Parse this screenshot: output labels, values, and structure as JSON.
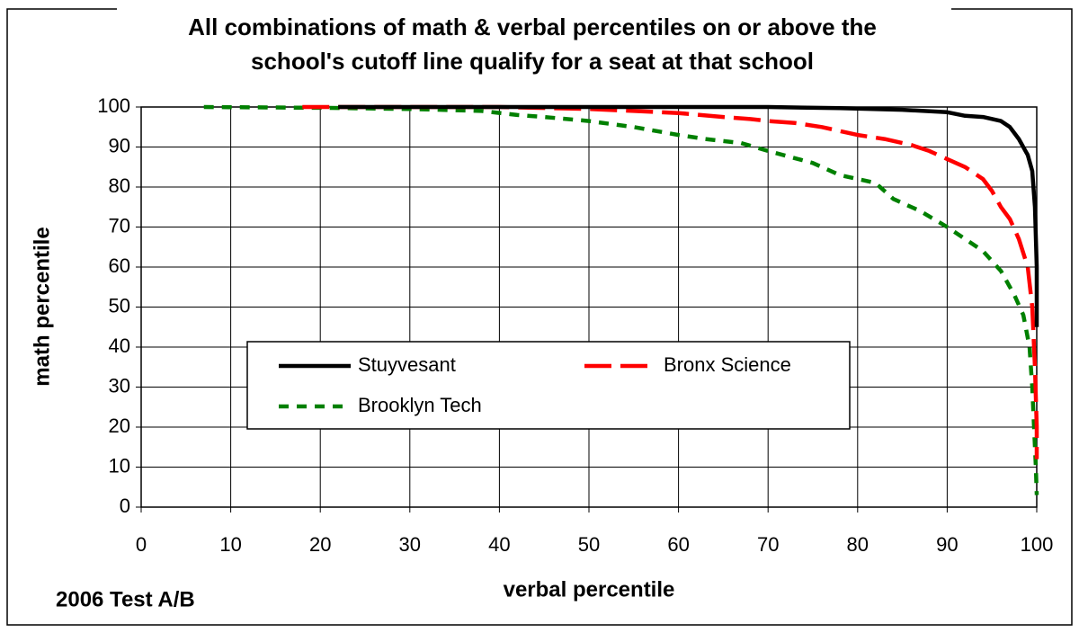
{
  "chart_data": {
    "type": "line",
    "title": [
      "All combinations of math & verbal percentiles on or above the",
      "school's cutoff line qualify for a seat at that school"
    ],
    "xlabel": "verbal percentile",
    "ylabel": "math percentile",
    "annotation": "2006 Test A/B",
    "xlim": [
      0,
      100
    ],
    "ylim": [
      0,
      100
    ],
    "xticks": [
      0,
      10,
      20,
      30,
      40,
      50,
      60,
      70,
      80,
      90,
      100
    ],
    "yticks": [
      0,
      10,
      20,
      30,
      40,
      50,
      60,
      70,
      80,
      90,
      100
    ],
    "grid": true,
    "legend": "center",
    "series": [
      {
        "name": "Stuyvesant",
        "color": "#000000",
        "line_style": "solid",
        "x": [
          22,
          70,
          78,
          85,
          90,
          92,
          94,
          96,
          97,
          98,
          99,
          99.5,
          99.8,
          100,
          100
        ],
        "values": [
          100,
          100,
          99.7,
          99.3,
          98.7,
          97.8,
          97.5,
          96.5,
          95,
          92,
          88,
          84,
          75,
          60,
          45
        ]
      },
      {
        "name": "Bronx Science",
        "color": "#ff0000",
        "line_style": "dashed",
        "x": [
          18,
          40,
          50,
          55,
          60,
          65,
          68,
          70,
          73,
          76,
          80,
          83,
          86,
          88,
          90,
          92,
          94,
          95,
          96,
          97,
          98,
          99,
          99.5,
          99.8,
          100,
          100
        ],
        "values": [
          100,
          100,
          99.5,
          99,
          98.5,
          97.5,
          97,
          96.5,
          96,
          95,
          93,
          92,
          90.5,
          89,
          87,
          85,
          82,
          79,
          75,
          72,
          67,
          60,
          50,
          35,
          20,
          12
        ]
      },
      {
        "name": "Brooklyn Tech",
        "color": "#008000",
        "line_style": "dotted",
        "x": [
          7,
          20,
          30,
          38,
          42,
          45,
          50,
          55,
          60,
          63,
          67,
          70,
          75,
          78,
          82,
          84,
          87,
          90,
          92,
          94,
          96,
          97.5,
          98.5,
          99.2,
          99.5,
          99.7,
          99.9,
          100
        ],
        "values": [
          100,
          99.8,
          99.5,
          99,
          98,
          97.5,
          96.5,
          95,
          93,
          92,
          91,
          89,
          86,
          83,
          81,
          77,
          74,
          70,
          67,
          64,
          59,
          53,
          48,
          40,
          30,
          20,
          10,
          3
        ]
      }
    ]
  }
}
